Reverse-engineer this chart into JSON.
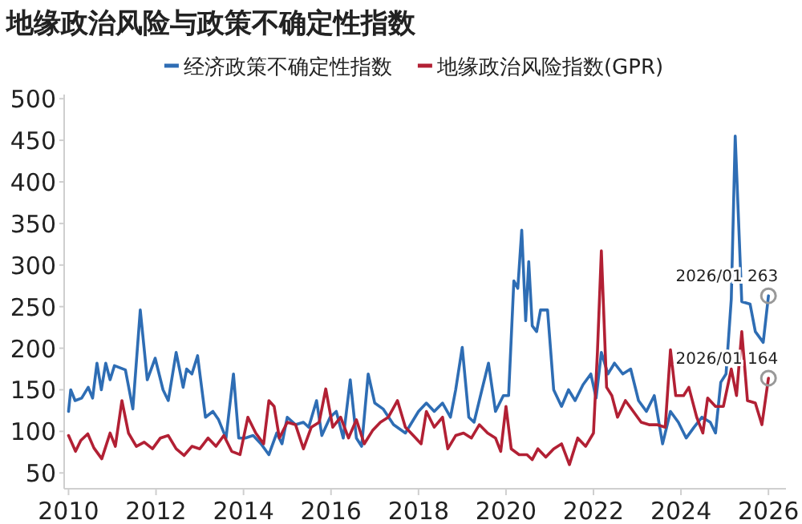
{
  "chart_data": {
    "type": "line",
    "title": "地缘政治风险与政策不确定性指数",
    "legend": "top",
    "marker": "none",
    "line_style": "solid",
    "xlim": [
      2009.9,
      2026.4
    ],
    "xticks": [
      2010,
      2012,
      2014,
      2016,
      2018,
      2020,
      2022,
      2024,
      2026
    ],
    "ylim": [
      31,
      505
    ],
    "yticks": [
      50,
      100,
      150,
      200,
      250,
      300,
      350,
      400,
      450,
      500
    ],
    "annotations": [
      {
        "text": "2026/01  263",
        "x": 2026.0,
        "y": 263
      },
      {
        "text": "2026/01  164",
        "x": 2026.0,
        "y": 164
      }
    ],
    "series": [
      {
        "name": "经济政策不确定性指数",
        "color": "#2e6db4",
        "x": [
          2010.0,
          2010.05,
          2010.15,
          2010.3,
          2010.45,
          2010.55,
          2010.65,
          2010.75,
          2010.85,
          2010.95,
          2011.05,
          2011.3,
          2011.47,
          2011.64,
          2011.8,
          2011.98,
          2012.16,
          2012.28,
          2012.46,
          2012.62,
          2012.7,
          2012.82,
          2012.95,
          2013.13,
          2013.3,
          2013.43,
          2013.6,
          2013.77,
          2013.89,
          2014.04,
          2014.22,
          2014.4,
          2014.58,
          2014.76,
          2014.88,
          2015.0,
          2015.19,
          2015.37,
          2015.49,
          2015.67,
          2015.79,
          2015.98,
          2016.12,
          2016.28,
          2016.44,
          2016.58,
          2016.7,
          2016.85,
          2017.0,
          2017.19,
          2017.43,
          2017.7,
          2018.0,
          2018.18,
          2018.36,
          2018.55,
          2018.73,
          2018.85,
          2019.0,
          2019.15,
          2019.27,
          2019.45,
          2019.6,
          2019.76,
          2019.94,
          2020.06,
          2020.18,
          2020.27,
          2020.36,
          2020.45,
          2020.52,
          2020.6,
          2020.7,
          2020.79,
          2020.95,
          2021.09,
          2021.27,
          2021.43,
          2021.58,
          2021.76,
          2021.94,
          2022.06,
          2022.18,
          2022.33,
          2022.48,
          2022.67,
          2022.85,
          2023.03,
          2023.21,
          2023.39,
          2023.58,
          2023.76,
          2023.94,
          2024.12,
          2024.3,
          2024.48,
          2024.67,
          2024.79,
          2024.91,
          2025.03,
          2025.15,
          2025.24,
          2025.39,
          2025.58,
          2025.7,
          2025.88,
          2026.0
        ],
        "values": [
          124,
          150,
          137,
          140,
          153,
          140,
          182,
          150,
          182,
          162,
          179,
          174,
          127,
          246,
          162,
          188,
          150,
          137,
          195,
          153,
          175,
          169,
          191,
          117,
          124,
          114,
          92,
          169,
          92,
          92,
          95,
          85,
          72,
          98,
          85,
          117,
          108,
          111,
          105,
          137,
          95,
          117,
          124,
          92,
          162,
          92,
          82,
          169,
          134,
          127,
          108,
          98,
          124,
          134,
          124,
          134,
          117,
          150,
          201,
          117,
          111,
          150,
          182,
          124,
          143,
          143,
          281,
          272,
          342,
          233,
          304,
          227,
          220,
          246,
          246,
          150,
          130,
          150,
          137,
          156,
          169,
          140,
          195,
          169,
          182,
          169,
          175,
          137,
          124,
          143,
          85,
          124,
          111,
          92,
          105,
          117,
          111,
          98,
          159,
          169,
          259,
          455,
          256,
          253,
          220,
          207,
          263
        ]
      },
      {
        "name": "地缘政治风险指数(GPR)",
        "color": "#b22034",
        "x": [
          2010.0,
          2010.16,
          2010.28,
          2010.44,
          2010.58,
          2010.76,
          2010.95,
          2011.07,
          2011.22,
          2011.37,
          2011.55,
          2011.73,
          2011.92,
          2012.1,
          2012.28,
          2012.46,
          2012.64,
          2012.82,
          2013.0,
          2013.19,
          2013.37,
          2013.55,
          2013.73,
          2013.92,
          2014.1,
          2014.28,
          2014.46,
          2014.58,
          2014.7,
          2014.82,
          2015.0,
          2015.19,
          2015.37,
          2015.55,
          2015.73,
          2015.88,
          2016.04,
          2016.22,
          2016.4,
          2016.58,
          2016.76,
          2016.95,
          2017.13,
          2017.31,
          2017.52,
          2017.7,
          2017.88,
          2018.06,
          2018.18,
          2018.36,
          2018.55,
          2018.67,
          2018.85,
          2019.03,
          2019.21,
          2019.39,
          2019.58,
          2019.76,
          2019.88,
          2020.0,
          2020.12,
          2020.3,
          2020.48,
          2020.6,
          2020.73,
          2020.91,
          2021.09,
          2021.27,
          2021.45,
          2021.64,
          2021.82,
          2022.0,
          2022.09,
          2022.18,
          2022.3,
          2022.42,
          2022.55,
          2022.73,
          2022.91,
          2023.09,
          2023.27,
          2023.45,
          2023.64,
          2023.76,
          2023.88,
          2024.06,
          2024.18,
          2024.36,
          2024.5,
          2024.61,
          2024.79,
          2024.97,
          2025.15,
          2025.27,
          2025.39,
          2025.52,
          2025.7,
          2025.85,
          2026.0
        ],
        "values": [
          95,
          76,
          89,
          97,
          80,
          67,
          98,
          82,
          137,
          98,
          82,
          87,
          79,
          92,
          95,
          79,
          71,
          82,
          79,
          92,
          82,
          95,
          76,
          72,
          117,
          98,
          85,
          137,
          130,
          92,
          111,
          108,
          79,
          105,
          111,
          151,
          105,
          117,
          92,
          114,
          85,
          101,
          111,
          117,
          137,
          105,
          95,
          85,
          124,
          105,
          117,
          79,
          95,
          98,
          92,
          108,
          98,
          92,
          76,
          130,
          79,
          72,
          72,
          66,
          79,
          69,
          79,
          85,
          60,
          92,
          82,
          98,
          195,
          317,
          153,
          143,
          117,
          137,
          124,
          111,
          108,
          108,
          105,
          198,
          143,
          143,
          153,
          117,
          98,
          140,
          130,
          130,
          175,
          143,
          220,
          137,
          134,
          108,
          164
        ]
      }
    ]
  }
}
